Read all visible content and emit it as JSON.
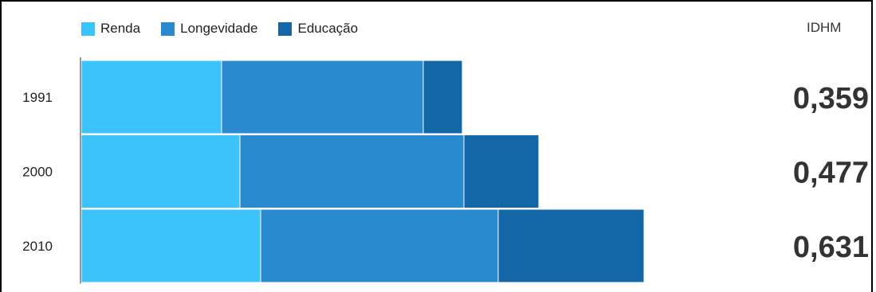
{
  "chart_data": {
    "type": "bar",
    "stacked": true,
    "orientation": "horizontal",
    "categories": [
      "1991",
      "2000",
      "2010"
    ],
    "series": [
      {
        "name": "Renda",
        "color": "#3cc3fc",
        "values": [
          0.176,
          0.199,
          0.225
        ]
      },
      {
        "name": "Longevidade",
        "color": "#2a8ad0",
        "values": [
          0.253,
          0.281,
          0.298
        ]
      },
      {
        "name": "Educação",
        "color": "#1467a7",
        "values": [
          0.049,
          0.094,
          0.183
        ]
      }
    ],
    "idhm_header": "IDHM",
    "idhm_values": [
      "0,359",
      "0,477",
      "0,631"
    ],
    "xlim": [
      0,
      1
    ],
    "grid": false,
    "legend_position": "top-left"
  }
}
